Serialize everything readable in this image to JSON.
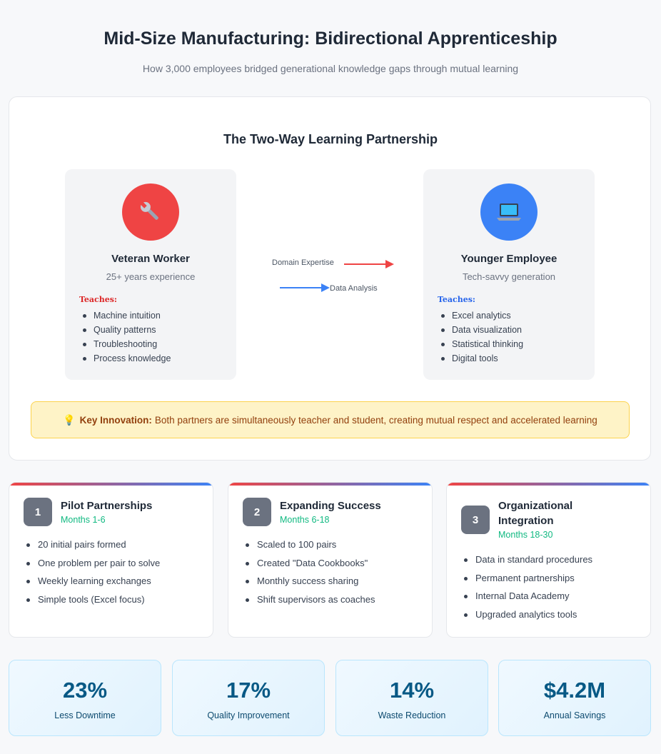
{
  "header": {
    "title": "Mid-Size Manufacturing: Bidirectional Apprenticeship",
    "subtitle": "How 3,000 employees bridged generational knowledge gaps through mutual learning"
  },
  "partnership": {
    "title": "The Two-Way Learning Partnership",
    "veteran": {
      "icon": "wrench-icon",
      "name": "Veteran Worker",
      "subtitle": "25+ years experience",
      "teaches_label": "Teaches:",
      "items": [
        "Machine intuition",
        "Quality patterns",
        "Troubleshooting",
        "Process knowledge"
      ]
    },
    "younger": {
      "icon": "laptop-icon",
      "name": "Younger Employee",
      "subtitle": "Tech-savvy generation",
      "teaches_label": "Teaches:",
      "items": [
        "Excel analytics",
        "Data visualization",
        "Statistical thinking",
        "Digital tools"
      ]
    },
    "flows": {
      "to_younger": "Domain Expertise",
      "to_veteran": "Data Analysis"
    },
    "innovation": {
      "icon": "lightbulb-icon",
      "label": "Key Innovation:",
      "text": "Both partners are simultaneously teacher and student, creating mutual respect and accelerated learning"
    }
  },
  "phases": [
    {
      "number": "1",
      "title": "Pilot Partnerships",
      "months": "Months 1-6",
      "items": [
        "20 initial pairs formed",
        "One problem per pair to solve",
        "Weekly learning exchanges",
        "Simple tools (Excel focus)"
      ]
    },
    {
      "number": "2",
      "title": "Expanding Success",
      "months": "Months 6-18",
      "items": [
        "Scaled to 100 pairs",
        "Created \"Data Cookbooks\"",
        "Monthly success sharing",
        "Shift supervisors as coaches"
      ]
    },
    {
      "number": "3",
      "title": "Organizational Integration",
      "months": "Months 18-30",
      "items": [
        "Data in standard procedures",
        "Permanent partnerships",
        "Internal Data Academy",
        "Upgraded analytics tools"
      ]
    }
  ],
  "stats": [
    {
      "value": "23%",
      "label": "Less Downtime"
    },
    {
      "value": "17%",
      "label": "Quality Improvement"
    },
    {
      "value": "14%",
      "label": "Waste Reduction"
    },
    {
      "value": "$4.2M",
      "label": "Annual Savings"
    }
  ],
  "colors": {
    "veteran_accent": "#ef4444",
    "younger_accent": "#3b82f6",
    "months_accent": "#10b981",
    "stat_value": "#075985"
  }
}
